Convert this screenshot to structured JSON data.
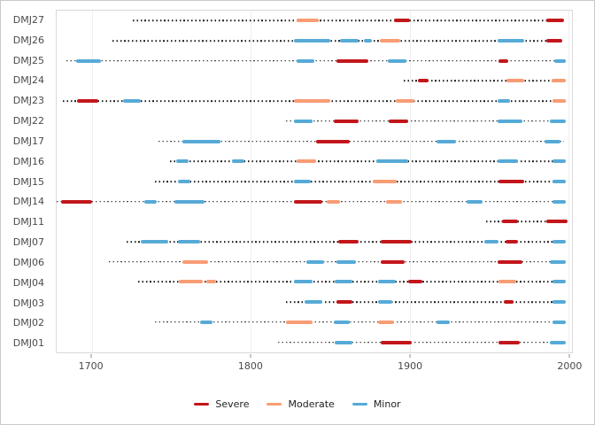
{
  "figure": {
    "background": "#ffffff",
    "border_color": "#c9c9c9"
  },
  "legend": {
    "items": [
      {
        "label": "Severe",
        "color": "#C2161B"
      },
      {
        "label": "Moderate",
        "color": "#F89C74"
      },
      {
        "label": "Minor",
        "color": "#56AAD7"
      }
    ]
  },
  "chart_data": {
    "type": "timeline",
    "title": "",
    "xlabel": "",
    "ylabel": "",
    "x_domain": [
      1678,
      2002
    ],
    "x_ticks": [
      1700,
      1800,
      1900,
      2000
    ],
    "x_tick_labels": [
      "1700",
      "1800",
      "1900",
      "2000"
    ],
    "grid": "vertical-major-only",
    "legend_position": "bottom",
    "severity_colors": {
      "Severe": "#C2161B",
      "Moderate": "#F89C74",
      "Minor": "#56AAD7"
    },
    "rows": [
      {
        "label": "DMJ27",
        "line": [
          1726,
          1997
        ],
        "segments": [
          {
            "start": 1829,
            "end": 1843,
            "severity": "Moderate"
          },
          {
            "start": 1890,
            "end": 1900,
            "severity": "Severe"
          },
          {
            "start": 1986,
            "end": 1997,
            "severity": "Severe"
          }
        ]
      },
      {
        "label": "DMJ26",
        "line": [
          1713,
          1997
        ],
        "segments": [
          {
            "start": 1827,
            "end": 1850,
            "severity": "Minor"
          },
          {
            "start": 1856,
            "end": 1868,
            "severity": "Minor"
          },
          {
            "start": 1871,
            "end": 1876,
            "severity": "Minor"
          },
          {
            "start": 1881,
            "end": 1894,
            "severity": "Moderate"
          },
          {
            "start": 1955,
            "end": 1972,
            "severity": "Minor"
          },
          {
            "start": 1986,
            "end": 1996,
            "severity": "Severe"
          }
        ]
      },
      {
        "label": "DMJ25",
        "line": [
          1684,
          1998
        ],
        "segments": [
          {
            "start": 1690,
            "end": 1706,
            "severity": "Minor"
          },
          {
            "start": 1829,
            "end": 1840,
            "severity": "Minor"
          },
          {
            "start": 1854,
            "end": 1874,
            "severity": "Severe"
          },
          {
            "start": 1886,
            "end": 1898,
            "severity": "Minor"
          },
          {
            "start": 1956,
            "end": 1962,
            "severity": "Severe"
          },
          {
            "start": 1991,
            "end": 1998,
            "severity": "Minor"
          }
        ]
      },
      {
        "label": "DMJ24",
        "line": [
          1896,
          1998
        ],
        "segments": [
          {
            "start": 1905,
            "end": 1912,
            "severity": "Severe"
          },
          {
            "start": 1961,
            "end": 1972,
            "severity": "Moderate"
          },
          {
            "start": 1989,
            "end": 1998,
            "severity": "Moderate"
          }
        ]
      },
      {
        "label": "DMJ23",
        "line": [
          1682,
          1998
        ],
        "segments": [
          {
            "start": 1691,
            "end": 1704,
            "severity": "Severe"
          },
          {
            "start": 1720,
            "end": 1731,
            "severity": "Minor"
          },
          {
            "start": 1827,
            "end": 1850,
            "severity": "Moderate"
          },
          {
            "start": 1891,
            "end": 1903,
            "severity": "Moderate"
          },
          {
            "start": 1955,
            "end": 1963,
            "severity": "Minor"
          },
          {
            "start": 1990,
            "end": 1998,
            "severity": "Moderate"
          }
        ]
      },
      {
        "label": "DMJ22",
        "line": [
          1822,
          1998
        ],
        "segments": [
          {
            "start": 1827,
            "end": 1839,
            "severity": "Minor"
          },
          {
            "start": 1852,
            "end": 1868,
            "severity": "Severe"
          },
          {
            "start": 1887,
            "end": 1899,
            "severity": "Severe"
          },
          {
            "start": 1955,
            "end": 1971,
            "severity": "Minor"
          },
          {
            "start": 1988,
            "end": 1998,
            "severity": "Minor"
          }
        ]
      },
      {
        "label": "DMJ17",
        "line": [
          1742,
          1997
        ],
        "segments": [
          {
            "start": 1757,
            "end": 1781,
            "severity": "Minor"
          },
          {
            "start": 1841,
            "end": 1862,
            "severity": "Severe"
          },
          {
            "start": 1917,
            "end": 1929,
            "severity": "Minor"
          },
          {
            "start": 1985,
            "end": 1995,
            "severity": "Minor"
          }
        ]
      },
      {
        "label": "DMJ16",
        "line": [
          1749,
          1998
        ],
        "segments": [
          {
            "start": 1753,
            "end": 1761,
            "severity": "Minor"
          },
          {
            "start": 1788,
            "end": 1796,
            "severity": "Minor"
          },
          {
            "start": 1829,
            "end": 1841,
            "severity": "Moderate"
          },
          {
            "start": 1879,
            "end": 1899,
            "severity": "Minor"
          },
          {
            "start": 1955,
            "end": 1968,
            "severity": "Minor"
          },
          {
            "start": 1990,
            "end": 1998,
            "severity": "Minor"
          }
        ]
      },
      {
        "label": "DMJ15",
        "line": [
          1740,
          1998
        ],
        "segments": [
          {
            "start": 1754,
            "end": 1762,
            "severity": "Minor"
          },
          {
            "start": 1827,
            "end": 1838,
            "severity": "Minor"
          },
          {
            "start": 1877,
            "end": 1892,
            "severity": "Moderate"
          },
          {
            "start": 1956,
            "end": 1972,
            "severity": "Severe"
          },
          {
            "start": 1990,
            "end": 1998,
            "severity": "Minor"
          }
        ]
      },
      {
        "label": "DMJ14",
        "line": [
          1678,
          1998
        ],
        "segments": [
          {
            "start": 1681,
            "end": 1700,
            "severity": "Severe"
          },
          {
            "start": 1733,
            "end": 1741,
            "severity": "Minor"
          },
          {
            "start": 1752,
            "end": 1771,
            "severity": "Minor"
          },
          {
            "start": 1827,
            "end": 1845,
            "severity": "Severe"
          },
          {
            "start": 1848,
            "end": 1856,
            "severity": "Moderate"
          },
          {
            "start": 1885,
            "end": 1895,
            "severity": "Moderate"
          },
          {
            "start": 1936,
            "end": 1946,
            "severity": "Minor"
          },
          {
            "start": 1990,
            "end": 1998,
            "severity": "Minor"
          }
        ]
      },
      {
        "label": "DMJ11",
        "line": [
          1948,
          1999
        ],
        "segments": [
          {
            "start": 1958,
            "end": 1968,
            "severity": "Severe"
          },
          {
            "start": 1986,
            "end": 1999,
            "severity": "Severe"
          }
        ]
      },
      {
        "label": "DMJ07",
        "line": [
          1722,
          1998
        ],
        "segments": [
          {
            "start": 1731,
            "end": 1748,
            "severity": "Minor"
          },
          {
            "start": 1754,
            "end": 1768,
            "severity": "Minor"
          },
          {
            "start": 1855,
            "end": 1868,
            "severity": "Severe"
          },
          {
            "start": 1882,
            "end": 1901,
            "severity": "Severe"
          },
          {
            "start": 1947,
            "end": 1956,
            "severity": "Minor"
          },
          {
            "start": 1960,
            "end": 1968,
            "severity": "Severe"
          },
          {
            "start": 1990,
            "end": 1998,
            "severity": "Minor"
          }
        ]
      },
      {
        "label": "DMJ06",
        "line": [
          1711,
          1998
        ],
        "segments": [
          {
            "start": 1757,
            "end": 1773,
            "severity": "Moderate"
          },
          {
            "start": 1835,
            "end": 1846,
            "severity": "Minor"
          },
          {
            "start": 1854,
            "end": 1866,
            "severity": "Minor"
          },
          {
            "start": 1882,
            "end": 1897,
            "severity": "Severe"
          },
          {
            "start": 1955,
            "end": 1971,
            "severity": "Severe"
          },
          {
            "start": 1988,
            "end": 1998,
            "severity": "Minor"
          }
        ]
      },
      {
        "label": "DMJ04",
        "line": [
          1729,
          1998
        ],
        "segments": [
          {
            "start": 1755,
            "end": 1770,
            "severity": "Moderate"
          },
          {
            "start": 1772,
            "end": 1778,
            "severity": "Moderate"
          },
          {
            "start": 1827,
            "end": 1839,
            "severity": "Minor"
          },
          {
            "start": 1853,
            "end": 1864,
            "severity": "Minor"
          },
          {
            "start": 1880,
            "end": 1891,
            "severity": "Minor"
          },
          {
            "start": 1899,
            "end": 1908,
            "severity": "Severe"
          },
          {
            "start": 1956,
            "end": 1967,
            "severity": "Moderate"
          },
          {
            "start": 1990,
            "end": 1998,
            "severity": "Minor"
          }
        ]
      },
      {
        "label": "DMJ03",
        "line": [
          1822,
          1998
        ],
        "segments": [
          {
            "start": 1834,
            "end": 1845,
            "severity": "Minor"
          },
          {
            "start": 1854,
            "end": 1864,
            "severity": "Severe"
          },
          {
            "start": 1880,
            "end": 1889,
            "severity": "Minor"
          },
          {
            "start": 1959,
            "end": 1965,
            "severity": "Severe"
          },
          {
            "start": 1990,
            "end": 1998,
            "severity": "Minor"
          }
        ]
      },
      {
        "label": "DMJ02",
        "line": [
          1740,
          1998
        ],
        "segments": [
          {
            "start": 1768,
            "end": 1776,
            "severity": "Minor"
          },
          {
            "start": 1822,
            "end": 1839,
            "severity": "Moderate"
          },
          {
            "start": 1852,
            "end": 1862,
            "severity": "Minor"
          },
          {
            "start": 1880,
            "end": 1890,
            "severity": "Moderate"
          },
          {
            "start": 1917,
            "end": 1925,
            "severity": "Minor"
          },
          {
            "start": 1990,
            "end": 1998,
            "severity": "Minor"
          }
        ]
      },
      {
        "label": "DMJ01",
        "line": [
          1817,
          1998
        ],
        "segments": [
          {
            "start": 1853,
            "end": 1864,
            "severity": "Minor"
          },
          {
            "start": 1882,
            "end": 1901,
            "severity": "Severe"
          },
          {
            "start": 1956,
            "end": 1969,
            "severity": "Severe"
          },
          {
            "start": 1988,
            "end": 1998,
            "severity": "Minor"
          }
        ]
      }
    ]
  }
}
